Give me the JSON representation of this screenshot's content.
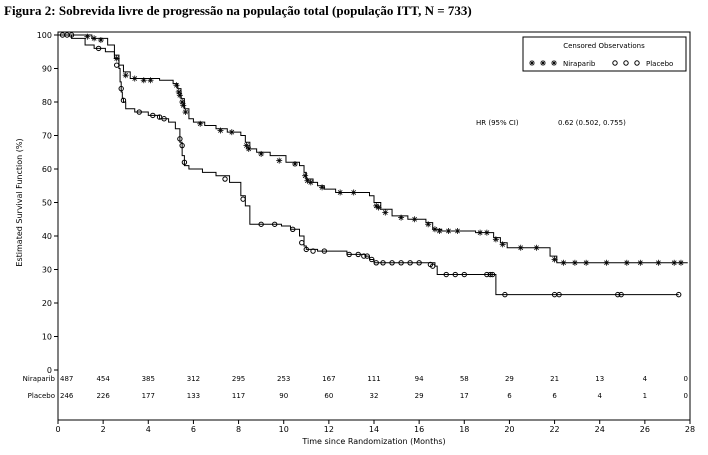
{
  "figure_title": "Figura 2: Sobrevida livre de progressão na população total (população ITT, N = 733)",
  "chart_data": {
    "type": "line",
    "xlabel": "Time since Randomization (Months)",
    "ylabel": "Estimated Survival Function (%)",
    "xlim": [
      0,
      28
    ],
    "ylim": [
      0,
      100
    ],
    "x_ticks": [
      "0",
      "2",
      "4",
      "6",
      "8",
      "10",
      "12",
      "14",
      "16",
      "18",
      "20",
      "22",
      "24",
      "26",
      "28"
    ],
    "y_ticks": [
      "0",
      "10",
      "20",
      "30",
      "40",
      "50",
      "60",
      "70",
      "80",
      "90",
      "100"
    ],
    "legend": {
      "title": "Censored Observations",
      "position": "top-right"
    },
    "annotation": {
      "label": "HR (95% CI)",
      "value": "0.62 (0.502, 0.755)"
    },
    "series": [
      {
        "name": "Niraparib",
        "marker": "star",
        "color": "#000000",
        "steps": [
          [
            0,
            100
          ],
          [
            1.5,
            99
          ],
          [
            2.2,
            97
          ],
          [
            2.5,
            94
          ],
          [
            2.7,
            91
          ],
          [
            2.9,
            89
          ],
          [
            3.2,
            87
          ],
          [
            4.5,
            86.5
          ],
          [
            5.1,
            85.5
          ],
          [
            5.3,
            84
          ],
          [
            5.45,
            81
          ],
          [
            5.6,
            78
          ],
          [
            5.8,
            75
          ],
          [
            6.0,
            74
          ],
          [
            6.5,
            73
          ],
          [
            7.0,
            72
          ],
          [
            7.5,
            71
          ],
          [
            8.1,
            70
          ],
          [
            8.3,
            68
          ],
          [
            8.5,
            66
          ],
          [
            8.8,
            65
          ],
          [
            9.4,
            64
          ],
          [
            10.1,
            62
          ],
          [
            10.7,
            61
          ],
          [
            10.9,
            59
          ],
          [
            11.0,
            57
          ],
          [
            11.3,
            56
          ],
          [
            11.5,
            55
          ],
          [
            11.8,
            54
          ],
          [
            12.3,
            53
          ],
          [
            13.8,
            52
          ],
          [
            14.0,
            50
          ],
          [
            14.3,
            48
          ],
          [
            14.8,
            46
          ],
          [
            15.5,
            45
          ],
          [
            16.3,
            44
          ],
          [
            16.6,
            42
          ],
          [
            17.0,
            41.5
          ],
          [
            18.5,
            41
          ],
          [
            19.3,
            39.5
          ],
          [
            19.6,
            38
          ],
          [
            19.9,
            36.5
          ],
          [
            21.8,
            34
          ],
          [
            22.1,
            32
          ],
          [
            27.9,
            32
          ]
        ],
        "censored": [
          [
            1.3,
            99.5
          ],
          [
            1.6,
            99
          ],
          [
            1.9,
            98.5
          ],
          [
            2.6,
            93
          ],
          [
            3.0,
            88
          ],
          [
            3.4,
            87
          ],
          [
            3.8,
            86.5
          ],
          [
            4.1,
            86.5
          ],
          [
            5.25,
            85
          ],
          [
            5.35,
            83
          ],
          [
            5.4,
            82
          ],
          [
            5.5,
            80
          ],
          [
            5.55,
            79
          ],
          [
            5.65,
            77
          ],
          [
            6.3,
            73.5
          ],
          [
            7.2,
            71.5
          ],
          [
            7.7,
            71
          ],
          [
            8.35,
            67
          ],
          [
            8.45,
            66
          ],
          [
            9.0,
            64.5
          ],
          [
            9.8,
            62.5
          ],
          [
            10.5,
            61.5
          ],
          [
            10.95,
            58
          ],
          [
            11.05,
            56.5
          ],
          [
            11.2,
            56
          ],
          [
            11.7,
            54.5
          ],
          [
            12.5,
            53
          ],
          [
            13.1,
            53
          ],
          [
            14.1,
            49
          ],
          [
            14.2,
            48.5
          ],
          [
            14.5,
            47
          ],
          [
            15.2,
            45.5
          ],
          [
            15.8,
            45
          ],
          [
            16.4,
            43.5
          ],
          [
            16.7,
            42
          ],
          [
            16.9,
            41.5
          ],
          [
            17.3,
            41.5
          ],
          [
            17.7,
            41.5
          ],
          [
            18.7,
            41
          ],
          [
            19.0,
            41
          ],
          [
            19.4,
            39
          ],
          [
            19.7,
            37.5
          ],
          [
            20.5,
            36.5
          ],
          [
            21.2,
            36.5
          ],
          [
            22.0,
            33
          ],
          [
            22.4,
            32
          ],
          [
            22.9,
            32
          ],
          [
            23.4,
            32
          ],
          [
            24.3,
            32
          ],
          [
            25.2,
            32
          ],
          [
            25.8,
            32
          ],
          [
            26.6,
            32
          ],
          [
            27.3,
            32
          ],
          [
            27.6,
            32
          ]
        ]
      },
      {
        "name": "Placebo",
        "marker": "circle",
        "color": "#000000",
        "steps": [
          [
            0,
            100
          ],
          [
            0.6,
            99
          ],
          [
            1.2,
            97
          ],
          [
            1.6,
            96
          ],
          [
            2.1,
            95
          ],
          [
            2.5,
            93
          ],
          [
            2.7,
            90
          ],
          [
            2.75,
            86
          ],
          [
            2.8,
            83
          ],
          [
            2.85,
            81
          ],
          [
            2.9,
            80
          ],
          [
            3.0,
            78
          ],
          [
            3.4,
            77
          ],
          [
            4.0,
            76
          ],
          [
            4.5,
            75
          ],
          [
            4.9,
            74
          ],
          [
            5.2,
            72
          ],
          [
            5.4,
            68
          ],
          [
            5.5,
            64
          ],
          [
            5.6,
            61
          ],
          [
            5.8,
            60
          ],
          [
            6.4,
            59
          ],
          [
            7.0,
            58
          ],
          [
            7.6,
            56
          ],
          [
            8.1,
            52
          ],
          [
            8.3,
            49
          ],
          [
            8.5,
            43.5
          ],
          [
            9.9,
            43
          ],
          [
            10.3,
            42
          ],
          [
            10.7,
            40
          ],
          [
            10.9,
            37
          ],
          [
            11.0,
            36
          ],
          [
            11.5,
            35.5
          ],
          [
            12.8,
            34.5
          ],
          [
            13.6,
            34
          ],
          [
            13.8,
            33
          ],
          [
            14.0,
            32
          ],
          [
            16.7,
            31
          ],
          [
            16.8,
            28.5
          ],
          [
            19.3,
            28.5
          ],
          [
            19.4,
            22.5
          ],
          [
            27.5,
            22.5
          ]
        ],
        "censored": [
          [
            0.2,
            100
          ],
          [
            0.4,
            100
          ],
          [
            0.6,
            100
          ],
          [
            1.8,
            96
          ],
          [
            2.6,
            91
          ],
          [
            2.8,
            84
          ],
          [
            2.9,
            80.5
          ],
          [
            3.6,
            77
          ],
          [
            4.2,
            76
          ],
          [
            4.5,
            75.5
          ],
          [
            4.7,
            75
          ],
          [
            5.4,
            69
          ],
          [
            5.5,
            67
          ],
          [
            5.6,
            62
          ],
          [
            7.4,
            57
          ],
          [
            8.2,
            51
          ],
          [
            9.0,
            43.5
          ],
          [
            9.6,
            43.5
          ],
          [
            10.4,
            42
          ],
          [
            10.8,
            38
          ],
          [
            11.0,
            36
          ],
          [
            11.3,
            35.5
          ],
          [
            11.8,
            35.5
          ],
          [
            12.9,
            34.5
          ],
          [
            13.3,
            34.5
          ],
          [
            13.55,
            34
          ],
          [
            13.7,
            34
          ],
          [
            13.9,
            33
          ],
          [
            14.1,
            32
          ],
          [
            14.4,
            32
          ],
          [
            14.8,
            32
          ],
          [
            15.2,
            32
          ],
          [
            15.6,
            32
          ],
          [
            16.0,
            32
          ],
          [
            16.5,
            31.5
          ],
          [
            16.6,
            31
          ],
          [
            17.2,
            28.5
          ],
          [
            17.6,
            28.5
          ],
          [
            18.0,
            28.5
          ],
          [
            19.0,
            28.5
          ],
          [
            19.15,
            28.5
          ],
          [
            19.25,
            28.5
          ],
          [
            19.8,
            22.5
          ],
          [
            22.0,
            22.5
          ],
          [
            22.2,
            22.5
          ],
          [
            24.8,
            22.5
          ],
          [
            24.95,
            22.5
          ],
          [
            27.5,
            22.5
          ]
        ]
      }
    ],
    "risk_table": {
      "times": [
        0,
        2,
        4,
        6,
        8,
        10,
        12,
        14,
        16,
        18,
        20,
        22,
        24,
        26,
        28
      ],
      "rows": [
        {
          "label": "Niraparib",
          "values": [
            "487",
            "454",
            "385",
            "312",
            "295",
            "253",
            "167",
            "111",
            "94",
            "58",
            "29",
            "21",
            "13",
            "4",
            "0"
          ]
        },
        {
          "label": "Placebo",
          "values": [
            "246",
            "226",
            "177",
            "133",
            "117",
            "90",
            "60",
            "32",
            "29",
            "17",
            "6",
            "6",
            "4",
            "1",
            "0"
          ]
        }
      ]
    }
  }
}
